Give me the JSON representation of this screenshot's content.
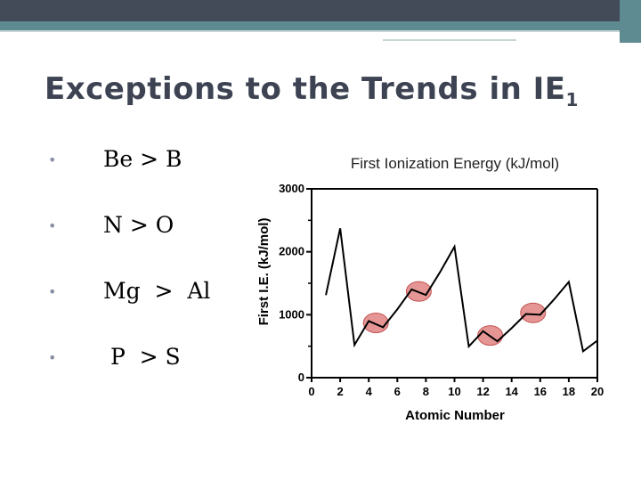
{
  "slide": {
    "title": "Exceptions to the Trends in IE",
    "title_subscript": "1",
    "bullets": [
      {
        "text": "Be > B"
      },
      {
        "text": "N > O"
      },
      {
        "text": "Mg  >  Al"
      },
      {
        "text": " P  > S"
      }
    ]
  },
  "colors": {
    "header_dark": "#434a58",
    "header_teal": "#5e8a91",
    "bullet_marker": "#8a8fa6",
    "highlight": "#e07a7a"
  },
  "chart_data": {
    "type": "line",
    "title": "First Ionization Energy (kJ/mol)",
    "xlabel": "Atomic  Number",
    "ylabel": "First I.E. (kJ/mol)",
    "xlim": [
      0,
      20
    ],
    "ylim": [
      0,
      3000
    ],
    "x_ticks": [
      "0",
      "2",
      "4",
      "6",
      "8",
      "10",
      "12",
      "14",
      "16",
      "18",
      "20"
    ],
    "y_ticks": [
      "0",
      "1000",
      "2000",
      "3000"
    ],
    "x": [
      1,
      2,
      3,
      4,
      5,
      6,
      7,
      8,
      9,
      10,
      11,
      12,
      13,
      14,
      15,
      16,
      17,
      18,
      19,
      20
    ],
    "values": [
      1312,
      2372,
      520,
      900,
      801,
      1086,
      1402,
      1314,
      1681,
      2081,
      496,
      738,
      578,
      787,
      1012,
      1000,
      1251,
      1521,
      419,
      590
    ],
    "highlights": [
      {
        "x": 4.5,
        "y": 870
      },
      {
        "x": 7.5,
        "y": 1370
      },
      {
        "x": 12.5,
        "y": 670
      },
      {
        "x": 15.5,
        "y": 1030
      }
    ]
  }
}
